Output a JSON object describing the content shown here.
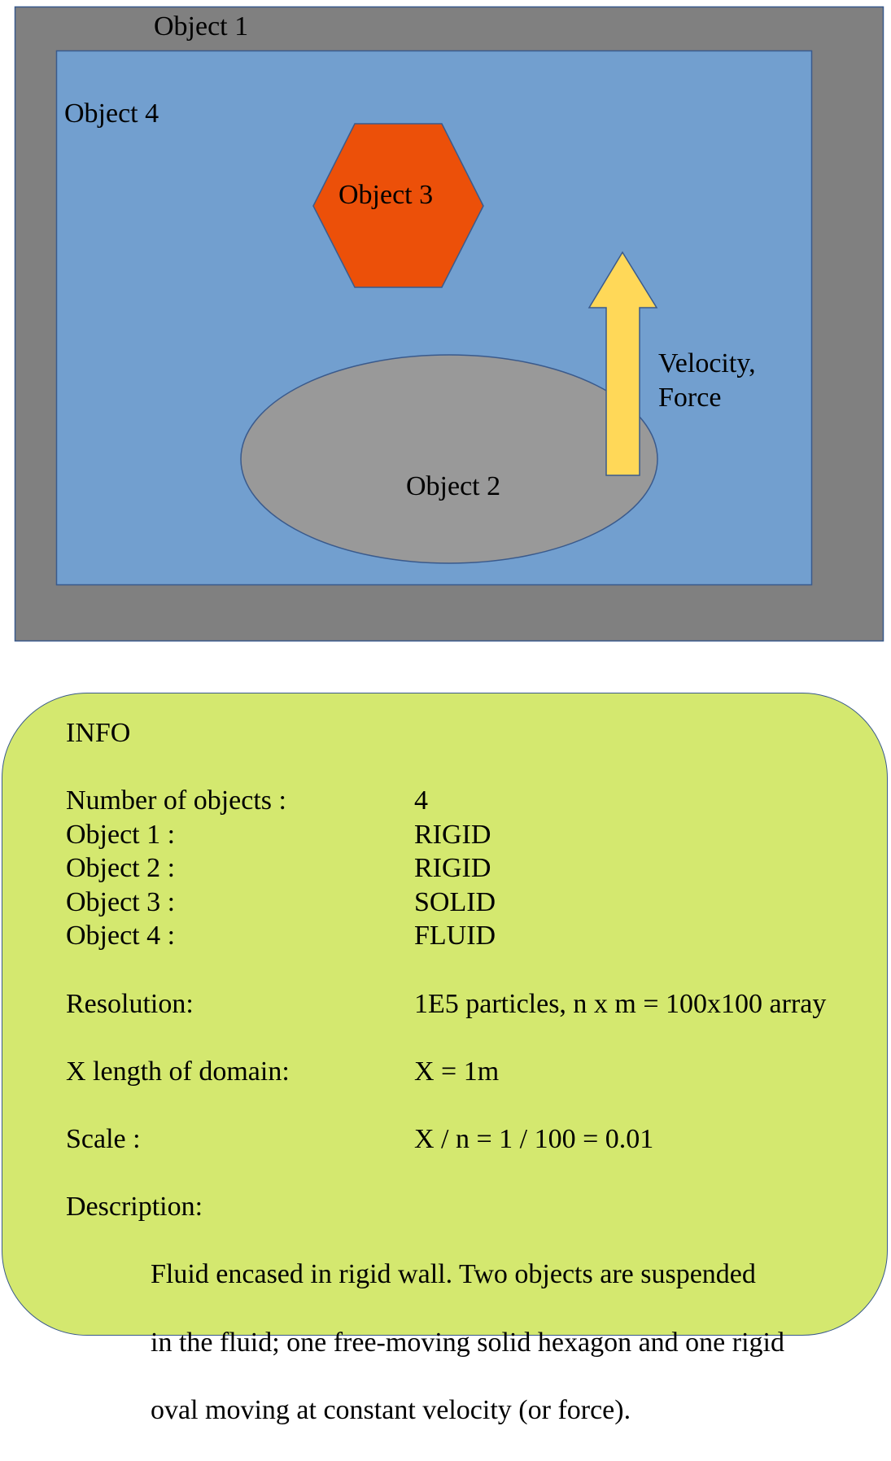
{
  "diagram": {
    "colors": {
      "wall": "#808080",
      "fluid": "#729fcf",
      "hexagon": "#ec5009",
      "oval": "#999999",
      "arrow": "#ffd858",
      "outline": "#3a5a8c"
    },
    "labels": {
      "object1": "Object 1",
      "object2": "Object 2",
      "object3": "Object 3",
      "object4": "Object 4",
      "arrow_line1": "Velocity,",
      "arrow_line2": "Force"
    }
  },
  "info": {
    "background": "#d4e86f",
    "title": "INFO",
    "count": {
      "label": "Number of objects :",
      "value": "4"
    },
    "objects": [
      {
        "label": "Object 1 :",
        "value": "RIGID"
      },
      {
        "label": "Object 2 :",
        "value": "RIGID"
      },
      {
        "label": "Object 3 :",
        "value": "SOLID"
      },
      {
        "label": "Object 4 :",
        "value": "FLUID"
      }
    ],
    "resolution": {
      "label": "Resolution:",
      "value": "1E5 particles, n x m = 100x100 array"
    },
    "domain": {
      "label": "X length of domain:",
      "value": "X = 1m"
    },
    "scale": {
      "label": "Scale :",
      "value": "X / n = 1 / 100 = 0.01"
    },
    "description": {
      "label": "Description:",
      "lines": [
        "Fluid encased in rigid wall. Two objects are suspended",
        "in the fluid; one free-moving solid hexagon and one rigid",
        "oval moving at constant velocity (or force)."
      ]
    }
  }
}
